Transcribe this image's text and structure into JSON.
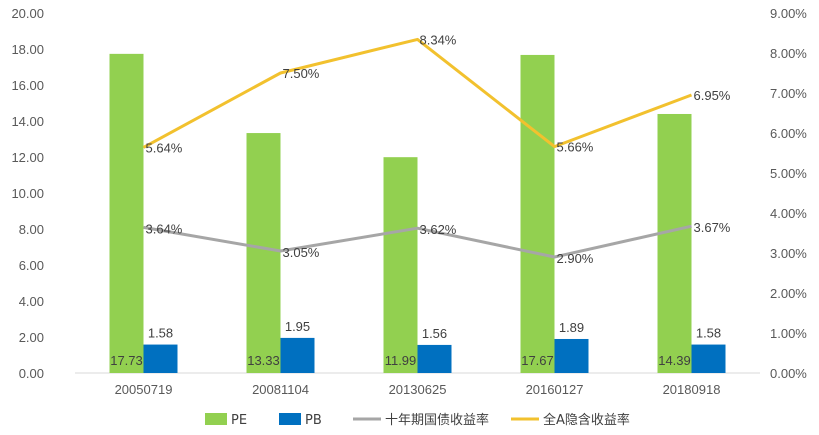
{
  "chart_data": {
    "type": "bar",
    "categories": [
      "20050719",
      "20081104",
      "20130625",
      "20160127",
      "20180918"
    ],
    "left_axis": {
      "ylim": [
        0,
        20
      ],
      "ticks": [
        "0.00",
        "2.00",
        "4.00",
        "6.00",
        "8.00",
        "10.00",
        "12.00",
        "14.00",
        "16.00",
        "18.00",
        "20.00"
      ]
    },
    "right_axis": {
      "ylim": [
        0,
        9
      ],
      "ticks": [
        "0.00%",
        "1.00%",
        "2.00%",
        "3.00%",
        "4.00%",
        "5.00%",
        "6.00%",
        "7.00%",
        "8.00%",
        "9.00%"
      ]
    },
    "series": [
      {
        "name": "PE",
        "kind": "bar",
        "axis": "left",
        "color": "#92d050",
        "values": [
          17.73,
          13.33,
          11.99,
          17.67,
          14.39
        ],
        "labels": [
          "17.73",
          "13.33",
          "11.99",
          "17.67",
          "14.39"
        ]
      },
      {
        "name": "PB",
        "kind": "bar",
        "axis": "left",
        "color": "#0070c0",
        "values": [
          1.58,
          1.95,
          1.56,
          1.89,
          1.58
        ],
        "labels": [
          "1.58",
          "1.95",
          "1.56",
          "1.89",
          "1.58"
        ]
      },
      {
        "name": "十年期国债收益率",
        "kind": "line",
        "axis": "right",
        "color": "#a6a6a6",
        "values": [
          3.64,
          3.05,
          3.62,
          2.9,
          3.67
        ],
        "labels": [
          "3.64%",
          "3.05%",
          "3.62%",
          "2.90%",
          "3.67%"
        ]
      },
      {
        "name": "全A隐含收益率",
        "kind": "line",
        "axis": "right",
        "color": "#f2c12e",
        "values": [
          5.64,
          7.5,
          8.34,
          5.66,
          6.95
        ],
        "labels": [
          "5.64%",
          "7.50%",
          "8.34%",
          "5.66%",
          "6.95%"
        ]
      }
    ],
    "grid": false,
    "legend": "bottom"
  }
}
